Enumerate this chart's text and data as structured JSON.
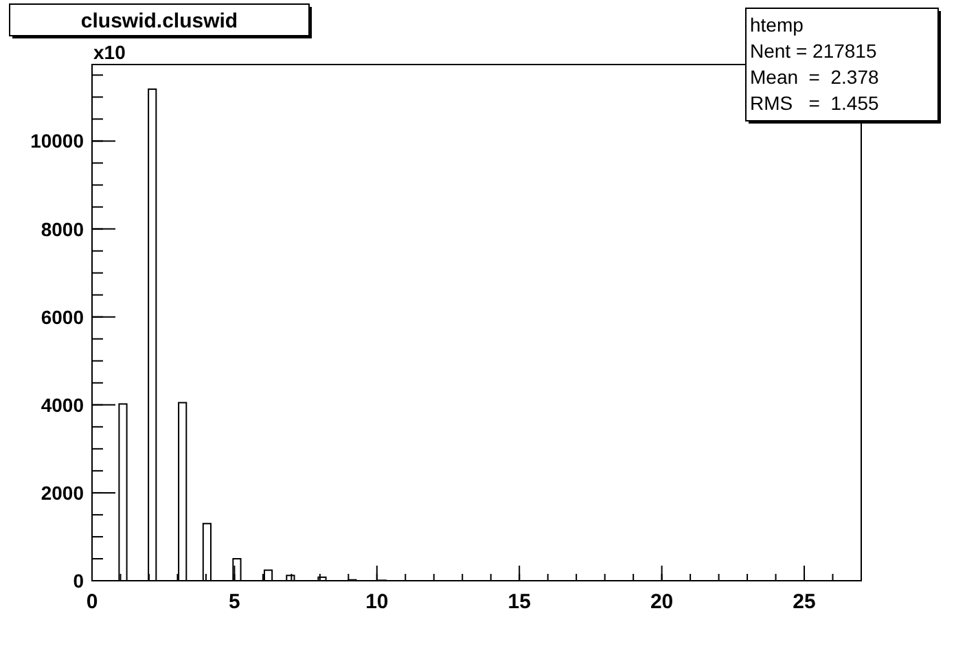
{
  "chart_data": {
    "type": "histogram",
    "title": "cluswid.cluswid",
    "ylabel": "x10",
    "bins": [
      0.95,
      1.22,
      1.98,
      2.25,
      3.04,
      3.31,
      3.9,
      4.17,
      4.95,
      5.22,
      6.05,
      6.32,
      6.83,
      7.1,
      7.94,
      8.21,
      9.0,
      9.27,
      10.05,
      10.32
    ],
    "values": [
      4020,
      0,
      11180,
      0,
      4050,
      0,
      1300,
      0,
      500,
      0,
      240,
      0,
      120,
      0,
      80,
      0,
      20,
      0,
      10
    ],
    "color": "#000000",
    "xlim": [
      0,
      27
    ],
    "xticks": [
      0,
      5,
      10,
      15,
      20,
      25
    ],
    "ylim": [
      0,
      11740
    ],
    "yticks": [
      0,
      2000,
      4000,
      6000,
      8000,
      10000
    ],
    "annotations": [
      "htemp",
      "Nent = 217815",
      "Mean  =  2.378",
      "RMS   =  1.455"
    ],
    "grid": false
  }
}
